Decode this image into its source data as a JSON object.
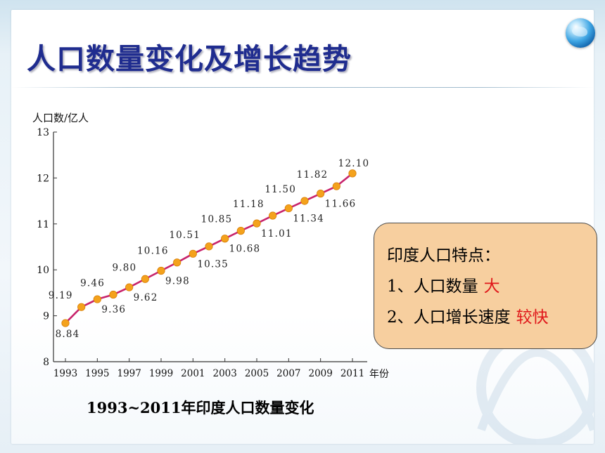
{
  "slide": {
    "title": "人口数量变化及增长趋势",
    "caption": "1993~2011年印度人口数量变化",
    "icon": "globe-icon"
  },
  "info_box": {
    "heading": "印度人口特点：",
    "items": [
      {
        "prefix": "1、人口数量",
        "highlight": "大"
      },
      {
        "prefix": "2、人口增长速度",
        "highlight": "较快"
      }
    ],
    "highlight_color": "#e0181b",
    "background_color": "#f7cf9f"
  },
  "chart_data": {
    "type": "line",
    "title": "",
    "ylabel": "人口数/亿人",
    "xlabel": "年份",
    "ylim": [
      8,
      13
    ],
    "yticks": [
      8,
      9,
      10,
      11,
      12,
      13
    ],
    "xlim": [
      1993,
      2011
    ],
    "xticks": [
      1993,
      1995,
      1997,
      1999,
      2001,
      2003,
      2005,
      2007,
      2009,
      2011
    ],
    "xtick_labels": [
      "1993",
      "1995",
      "1997",
      "1999",
      "2001",
      "2003",
      "2005",
      "2007",
      "2009",
      "2011"
    ],
    "x": [
      1993,
      1994,
      1995,
      1996,
      1997,
      1998,
      1999,
      2000,
      2001,
      2002,
      2003,
      2004,
      2005,
      2006,
      2007,
      2008,
      2009,
      2010,
      2011
    ],
    "values": [
      8.84,
      9.19,
      9.36,
      9.46,
      9.62,
      9.8,
      9.98,
      10.16,
      10.35,
      10.51,
      10.68,
      10.85,
      11.01,
      11.18,
      11.34,
      11.5,
      11.66,
      11.82,
      12.1
    ],
    "data_labels": [
      "8.84",
      "9.19",
      "9.36",
      "9.46",
      "9.62",
      "9.80",
      "9.98",
      "10.16",
      "10.35",
      "10.51",
      "10.68",
      "10.85",
      "11.01",
      "11.18",
      "11.34",
      "11.50",
      "11.66",
      "11.82",
      "12.10"
    ],
    "line_color": "#c8246c",
    "marker_color": "#f4a21c",
    "grid": false,
    "legend": "none"
  }
}
